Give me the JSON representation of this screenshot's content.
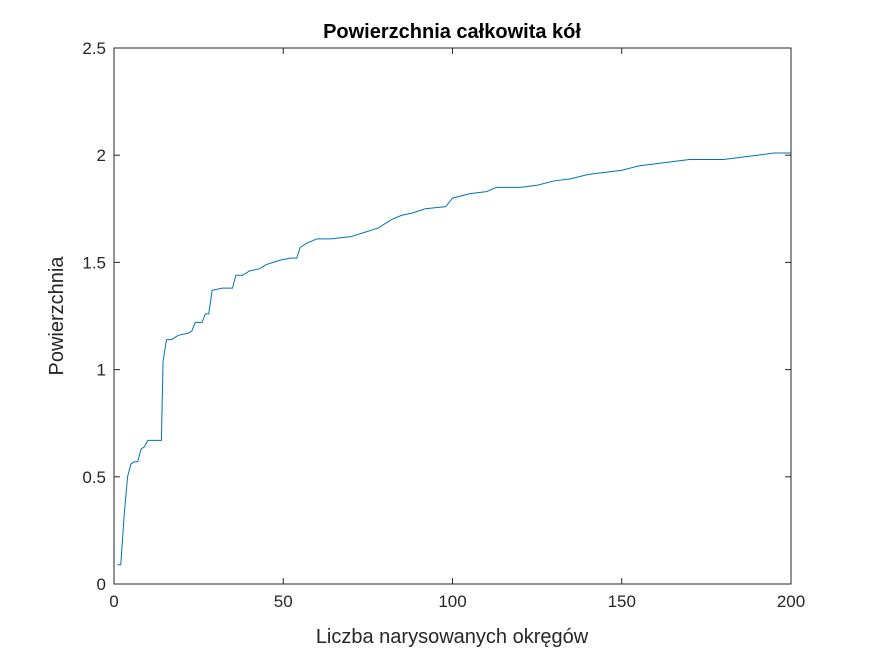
{
  "chart_data": {
    "type": "line",
    "title": "Powierzchnia całkowita kół",
    "xlabel": "Liczba narysowanych okręgów",
    "ylabel": "Powierzchnia",
    "xlim": [
      0,
      200
    ],
    "ylim": [
      0,
      2.5
    ],
    "xticks": [
      0,
      50,
      100,
      150,
      200
    ],
    "xtick_labels": [
      "0",
      "50",
      "100",
      "150",
      "200"
    ],
    "yticks": [
      0,
      0.5,
      1,
      1.5,
      2,
      2.5
    ],
    "ytick_labels": [
      "0",
      "0.5",
      "1",
      "1.5",
      "2",
      "2.5"
    ],
    "grid": false,
    "box": true,
    "series": [
      {
        "color": "#0072BD",
        "points": [
          [
            1,
            0.09
          ],
          [
            2,
            0.09
          ],
          [
            3,
            0.32
          ],
          [
            4,
            0.5
          ],
          [
            5,
            0.56
          ],
          [
            6,
            0.57
          ],
          [
            7,
            0.57
          ],
          [
            8,
            0.63
          ],
          [
            9,
            0.64
          ],
          [
            10,
            0.67
          ],
          [
            11,
            0.67
          ],
          [
            12,
            0.67
          ],
          [
            13,
            0.67
          ],
          [
            14,
            0.67
          ],
          [
            14.5,
            1.04
          ],
          [
            15.5,
            1.14
          ],
          [
            17,
            1.14
          ],
          [
            19,
            1.16
          ],
          [
            22,
            1.17
          ],
          [
            23,
            1.18
          ],
          [
            24,
            1.22
          ],
          [
            26,
            1.22
          ],
          [
            27,
            1.26
          ],
          [
            28,
            1.26
          ],
          [
            29,
            1.37
          ],
          [
            32,
            1.38
          ],
          [
            35,
            1.38
          ],
          [
            36,
            1.44
          ],
          [
            38,
            1.44
          ],
          [
            40,
            1.46
          ],
          [
            43,
            1.47
          ],
          [
            45,
            1.49
          ],
          [
            47,
            1.5
          ],
          [
            49,
            1.51
          ],
          [
            52,
            1.52
          ],
          [
            54,
            1.52
          ],
          [
            55,
            1.57
          ],
          [
            57,
            1.59
          ],
          [
            60,
            1.61
          ],
          [
            64,
            1.61
          ],
          [
            70,
            1.62
          ],
          [
            74,
            1.64
          ],
          [
            78,
            1.66
          ],
          [
            82,
            1.7
          ],
          [
            85,
            1.72
          ],
          [
            88,
            1.73
          ],
          [
            92,
            1.75
          ],
          [
            98,
            1.76
          ],
          [
            100,
            1.8
          ],
          [
            105,
            1.82
          ],
          [
            110,
            1.83
          ],
          [
            113,
            1.85
          ],
          [
            120,
            1.85
          ],
          [
            125,
            1.86
          ],
          [
            130,
            1.88
          ],
          [
            135,
            1.89
          ],
          [
            140,
            1.91
          ],
          [
            145,
            1.92
          ],
          [
            150,
            1.93
          ],
          [
            155,
            1.95
          ],
          [
            160,
            1.96
          ],
          [
            165,
            1.97
          ],
          [
            170,
            1.98
          ],
          [
            175,
            1.98
          ],
          [
            180,
            1.98
          ],
          [
            185,
            1.99
          ],
          [
            190,
            2.0
          ],
          [
            195,
            2.01
          ],
          [
            200,
            2.01
          ]
        ]
      },
      {
        "color": "#7E2F8E",
        "points": [
          [
            0,
            0
          ],
          [
            200,
            0
          ]
        ]
      }
    ]
  }
}
